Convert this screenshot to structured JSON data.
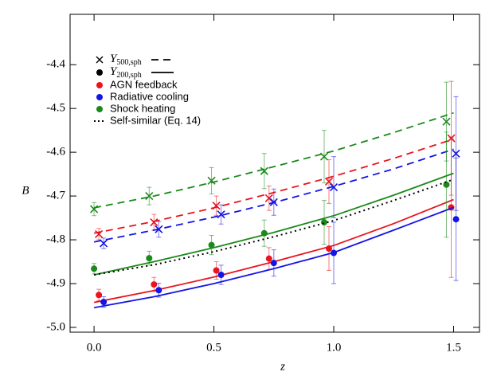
{
  "chart_data": {
    "type": "scatter",
    "x_label": "z",
    "y_label": "B",
    "xlim": [
      -0.1,
      1.608
    ],
    "ylim": [
      -5.011,
      -4.285
    ],
    "xticks": [
      {
        "value": 0,
        "label": "0.0"
      },
      0.5,
      {
        "value": 1,
        "label": "1.0"
      },
      1.5
    ],
    "yticks": [
      {
        "value": -5,
        "label": "-5.0"
      },
      -4.9,
      -4.8,
      -4.7,
      -4.6,
      -4.5,
      -4.4
    ],
    "legend_symbols": [
      {
        "symbol": "Y",
        "subscript": "500,sph",
        "marker": "x",
        "line": "dashed"
      },
      {
        "symbol": "Y",
        "subscript": "200,sph",
        "marker": "circle",
        "line": "solid"
      }
    ],
    "models": [
      {
        "name": "AGN feedback",
        "color": "#e8141e",
        "y500": {
          "x": [
            0.02,
            0.25,
            0.51,
            0.73,
            0.98,
            1.49
          ],
          "values": [
            -4.787,
            -4.76,
            -4.722,
            -4.705,
            -4.667,
            -4.568
          ],
          "errors": [
            0.013,
            0.018,
            0.022,
            0.028,
            0.05,
            0.13
          ],
          "line_x": [
            0,
            0.25,
            0.5,
            0.75,
            1.0,
            1.25,
            1.5
          ],
          "line_values": [
            -4.785,
            -4.758,
            -4.727,
            -4.692,
            -4.655,
            -4.614,
            -4.57
          ]
        },
        "y200": {
          "x": [
            0.02,
            0.25,
            0.51,
            0.73,
            0.98,
            1.49
          ],
          "values": [
            -4.926,
            -4.902,
            -4.87,
            -4.843,
            -4.82,
            -4.726
          ],
          "errors": [
            0.013,
            0.016,
            0.02,
            0.025,
            0.05,
            0.16
          ],
          "line_x": [
            0,
            0.25,
            0.5,
            0.75,
            1.0,
            1.25,
            1.5
          ],
          "line_values": [
            -4.943,
            -4.916,
            -4.885,
            -4.85,
            -4.813,
            -4.763,
            -4.708
          ]
        }
      },
      {
        "name": "Radiative cooling",
        "color": "#1414e6",
        "y500": {
          "x": [
            0.04,
            0.27,
            0.53,
            0.75,
            1.0,
            1.51
          ],
          "values": [
            -4.808,
            -4.776,
            -4.742,
            -4.714,
            -4.68,
            -4.603
          ],
          "errors": [
            0.012,
            0.018,
            0.022,
            0.03,
            0.07,
            0.13
          ],
          "line_x": [
            0,
            0.25,
            0.5,
            0.75,
            1.0,
            1.25,
            1.5
          ],
          "line_values": [
            -4.805,
            -4.778,
            -4.748,
            -4.715,
            -4.678,
            -4.638,
            -4.593
          ]
        },
        "y200": {
          "x": [
            0.04,
            0.27,
            0.53,
            0.75,
            1.0,
            1.51
          ],
          "values": [
            -4.942,
            -4.915,
            -4.88,
            -4.853,
            -4.83,
            -4.753
          ],
          "errors": [
            0.012,
            0.016,
            0.022,
            0.03,
            0.07,
            0.14
          ],
          "line_x": [
            0,
            0.25,
            0.5,
            0.75,
            1.0,
            1.25,
            1.5
          ],
          "line_values": [
            -4.955,
            -4.93,
            -4.9,
            -4.866,
            -4.829,
            -4.778,
            -4.726
          ]
        }
      },
      {
        "name": "Shock heating",
        "color": "#1a8a1a",
        "y500": {
          "x": [
            0.0,
            0.23,
            0.49,
            0.71,
            0.96,
            1.47
          ],
          "values": [
            -4.73,
            -4.7,
            -4.665,
            -4.643,
            -4.61,
            -4.53
          ],
          "errors": [
            0.015,
            0.02,
            0.03,
            0.04,
            0.06,
            0.09
          ],
          "line_x": [
            0,
            0.25,
            0.5,
            0.75,
            1.0,
            1.25,
            1.5
          ],
          "line_values": [
            -4.727,
            -4.7,
            -4.668,
            -4.633,
            -4.597,
            -4.555,
            -4.51
          ]
        },
        "y200": {
          "x": [
            0.0,
            0.23,
            0.49,
            0.71,
            0.96,
            1.47
          ],
          "values": [
            -4.866,
            -4.842,
            -4.812,
            -4.785,
            -4.76,
            -4.674
          ],
          "errors": [
            0.012,
            0.016,
            0.022,
            0.03,
            0.05,
            0.12
          ],
          "line_x": [
            0,
            0.25,
            0.5,
            0.75,
            1.0,
            1.25,
            1.5
          ],
          "line_values": [
            -4.88,
            -4.85,
            -4.818,
            -4.783,
            -4.745,
            -4.698,
            -4.648
          ]
        }
      }
    ],
    "self_similar": {
      "name": "Self-similar (Eq. 14)",
      "color": "#000000",
      "x": [
        0,
        0.25,
        0.5,
        0.75,
        1.0,
        1.25,
        1.5
      ],
      "values": [
        -4.88,
        -4.857,
        -4.827,
        -4.793,
        -4.756,
        -4.71,
        -4.662
      ]
    }
  }
}
